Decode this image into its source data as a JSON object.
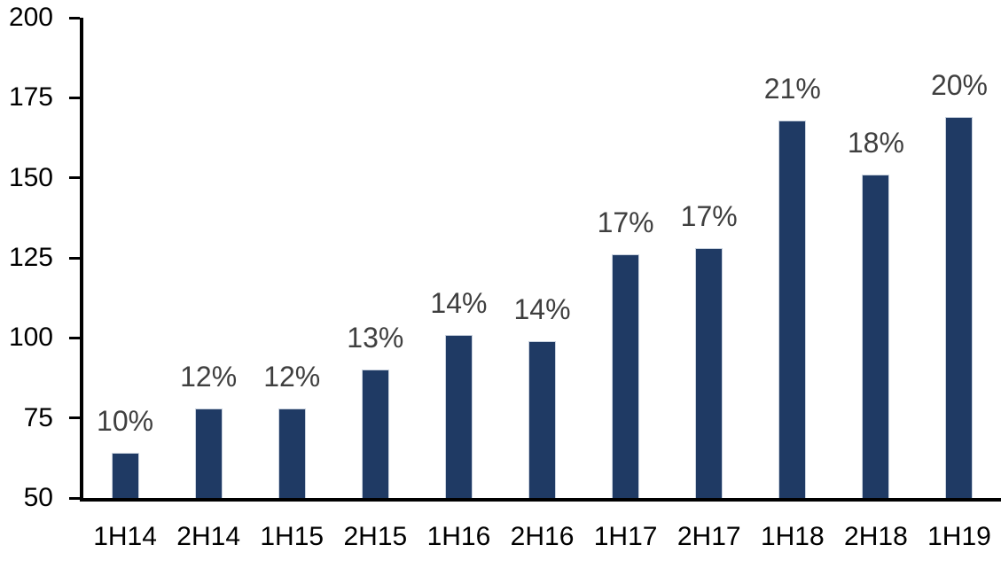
{
  "chart_data": {
    "type": "bar",
    "title": "",
    "xlabel": "",
    "ylabel": "",
    "categories": [
      "1H14",
      "2H14",
      "1H15",
      "2H15",
      "1H16",
      "2H16",
      "1H17",
      "2H17",
      "1H18",
      "2H18",
      "1H19"
    ],
    "values": [
      64,
      78,
      78,
      90,
      101,
      99,
      126,
      128,
      168,
      151,
      169
    ],
    "bar_labels": [
      "10%",
      "12%",
      "12%",
      "13%",
      "14%",
      "14%",
      "17%",
      "17%",
      "21%",
      "18%",
      "20%"
    ],
    "ylim": [
      50,
      200
    ],
    "yticks": [
      200,
      175,
      150,
      125,
      100,
      75,
      50
    ],
    "grid": false,
    "legend": false,
    "colors": {
      "bar_fill": "#1F3A64",
      "bar_border": "#C9D2DE",
      "data_label": "#3F3F3F",
      "axis": "#000000",
      "background": "#FFFFFF"
    }
  }
}
